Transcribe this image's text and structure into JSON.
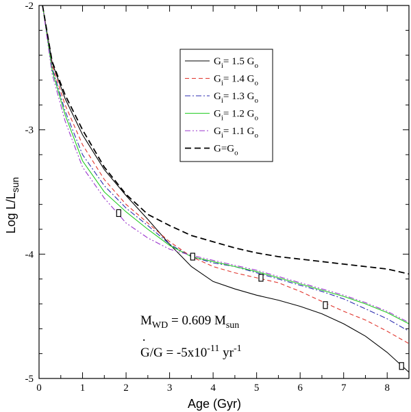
{
  "chart_data": {
    "type": "line",
    "xlabel": "Age (Gyr)",
    "ylabel_main": "Log L/L",
    "ylabel_sub": "sun",
    "xlim": [
      0,
      8.5
    ],
    "ylim": [
      -5,
      -2
    ],
    "x_ticks": [
      0,
      1,
      2,
      3,
      4,
      5,
      6,
      7,
      8
    ],
    "y_ticks": [
      -5,
      -4,
      -3,
      -2
    ],
    "grid": false,
    "legend_position": "top-center",
    "series": [
      {
        "name": "G_i= 1.5 G_o",
        "legend_main": "G",
        "legend_sub": "i",
        "legend_rest": "= 1.5 G",
        "legend_sub2": "o",
        "color": "#000000",
        "dash": "solid",
        "x": [
          0.08,
          0.3,
          0.6,
          1.0,
          1.5,
          2.0,
          2.5,
          3.0,
          3.5,
          4.0,
          4.5,
          5.0,
          5.5,
          6.0,
          6.5,
          7.0,
          7.5,
          8.0,
          8.5
        ],
        "y": [
          -2.0,
          -2.46,
          -2.75,
          -3.04,
          -3.32,
          -3.53,
          -3.72,
          -3.92,
          -4.1,
          -4.22,
          -4.28,
          -4.33,
          -4.37,
          -4.42,
          -4.48,
          -4.56,
          -4.66,
          -4.79,
          -4.95
        ]
      },
      {
        "name": "G_i= 1.4 G_o",
        "legend_main": "G",
        "legend_sub": "i",
        "legend_rest": "= 1.4 G",
        "legend_sub2": "o",
        "color": "#e0322a",
        "dash": "dashed",
        "x": [
          0.08,
          0.3,
          0.6,
          1.0,
          1.5,
          2.0,
          2.5,
          3.0,
          3.5,
          4.0,
          4.5,
          5.0,
          5.5,
          6.0,
          6.5,
          7.0,
          7.5,
          8.0,
          8.5
        ],
        "y": [
          -2.0,
          -2.48,
          -2.8,
          -3.12,
          -3.4,
          -3.6,
          -3.75,
          -3.9,
          -4.02,
          -4.1,
          -4.15,
          -4.19,
          -4.23,
          -4.3,
          -4.38,
          -4.46,
          -4.53,
          -4.62,
          -4.72
        ]
      },
      {
        "name": "G_i= 1.3 G_o",
        "legend_main": "G",
        "legend_sub": "i",
        "legend_rest": "= 1.3 G",
        "legend_sub2": "o",
        "color": "#2a2ab0",
        "dash": "dashdot",
        "x": [
          0.08,
          0.3,
          0.6,
          1.0,
          1.5,
          2.0,
          2.5,
          3.0,
          3.5,
          4.0,
          4.5,
          5.0,
          5.5,
          6.0,
          6.5,
          7.0,
          7.5,
          8.0,
          8.5
        ],
        "y": [
          -2.0,
          -2.5,
          -2.85,
          -3.2,
          -3.45,
          -3.63,
          -3.77,
          -3.92,
          -4.02,
          -4.07,
          -4.1,
          -4.15,
          -4.2,
          -4.25,
          -4.3,
          -4.36,
          -4.44,
          -4.52,
          -4.62
        ]
      },
      {
        "name": "G_i= 1.2 G_o",
        "legend_main": "G",
        "legend_sub": "i",
        "legend_rest": "= 1.2 G",
        "legend_sub2": "o",
        "color": "#22cc22",
        "dash": "solid",
        "x": [
          0.08,
          0.3,
          0.6,
          1.0,
          1.5,
          2.0,
          2.5,
          3.0,
          3.5,
          4.0,
          4.5,
          5.0,
          5.5,
          6.0,
          6.5,
          7.0,
          7.5,
          8.0,
          8.5
        ],
        "y": [
          -2.0,
          -2.52,
          -2.88,
          -3.25,
          -3.5,
          -3.66,
          -3.8,
          -3.93,
          -4.02,
          -4.06,
          -4.1,
          -4.14,
          -4.19,
          -4.24,
          -4.29,
          -4.34,
          -4.4,
          -4.47,
          -4.56
        ]
      },
      {
        "name": "G_i= 1.1 G_o",
        "legend_main": "G",
        "legend_sub": "i",
        "legend_rest": "= 1.1 G",
        "legend_sub2": "o",
        "color": "#9933cc",
        "dash": "dashdotdot",
        "x": [
          0.08,
          0.3,
          0.6,
          1.0,
          1.5,
          2.0,
          2.5,
          3.0,
          3.5,
          4.0,
          4.5,
          5.0,
          5.5,
          6.0,
          6.5,
          7.0,
          7.5,
          8.0,
          8.5
        ],
        "y": [
          -2.0,
          -2.55,
          -2.93,
          -3.3,
          -3.55,
          -3.75,
          -3.87,
          -3.96,
          -4.01,
          -4.05,
          -4.09,
          -4.13,
          -4.18,
          -4.23,
          -4.28,
          -4.33,
          -4.39,
          -4.46,
          -4.55
        ]
      },
      {
        "name": "G=G_o",
        "legend_main": "G=G",
        "legend_sub": "",
        "legend_rest": "",
        "legend_sub2": "o",
        "color": "#000000",
        "dash": "longdash",
        "x": [
          0.08,
          0.3,
          0.6,
          1.0,
          1.5,
          2.0,
          2.5,
          3.0,
          3.5,
          4.0,
          4.5,
          5.0,
          5.5,
          6.0,
          6.5,
          7.0,
          7.5,
          8.0,
          8.5
        ],
        "y": [
          -2.0,
          -2.45,
          -2.72,
          -3.0,
          -3.3,
          -3.52,
          -3.68,
          -3.77,
          -3.85,
          -3.9,
          -3.95,
          -3.99,
          -4.02,
          -4.04,
          -4.06,
          -4.08,
          -4.1,
          -4.12,
          -4.16
        ]
      }
    ],
    "markers": [
      {
        "x": 1.83,
        "y": -3.67
      },
      {
        "x": 3.53,
        "y": -4.02
      },
      {
        "x": 5.1,
        "y": -4.19
      },
      {
        "x": 6.58,
        "y": -4.41
      },
      {
        "x": 8.33,
        "y": -4.9
      }
    ],
    "annotations": {
      "mass_main": "M",
      "mass_sub": "WD",
      "mass_rest": " = 0.609 M",
      "mass_sub2": "sun",
      "gdot_main": "G/G = -5x10",
      "gdot_dot": "·",
      "gdot_sup": "-11",
      "gdot_unit": " yr",
      "gdot_sup2": "-1"
    }
  }
}
